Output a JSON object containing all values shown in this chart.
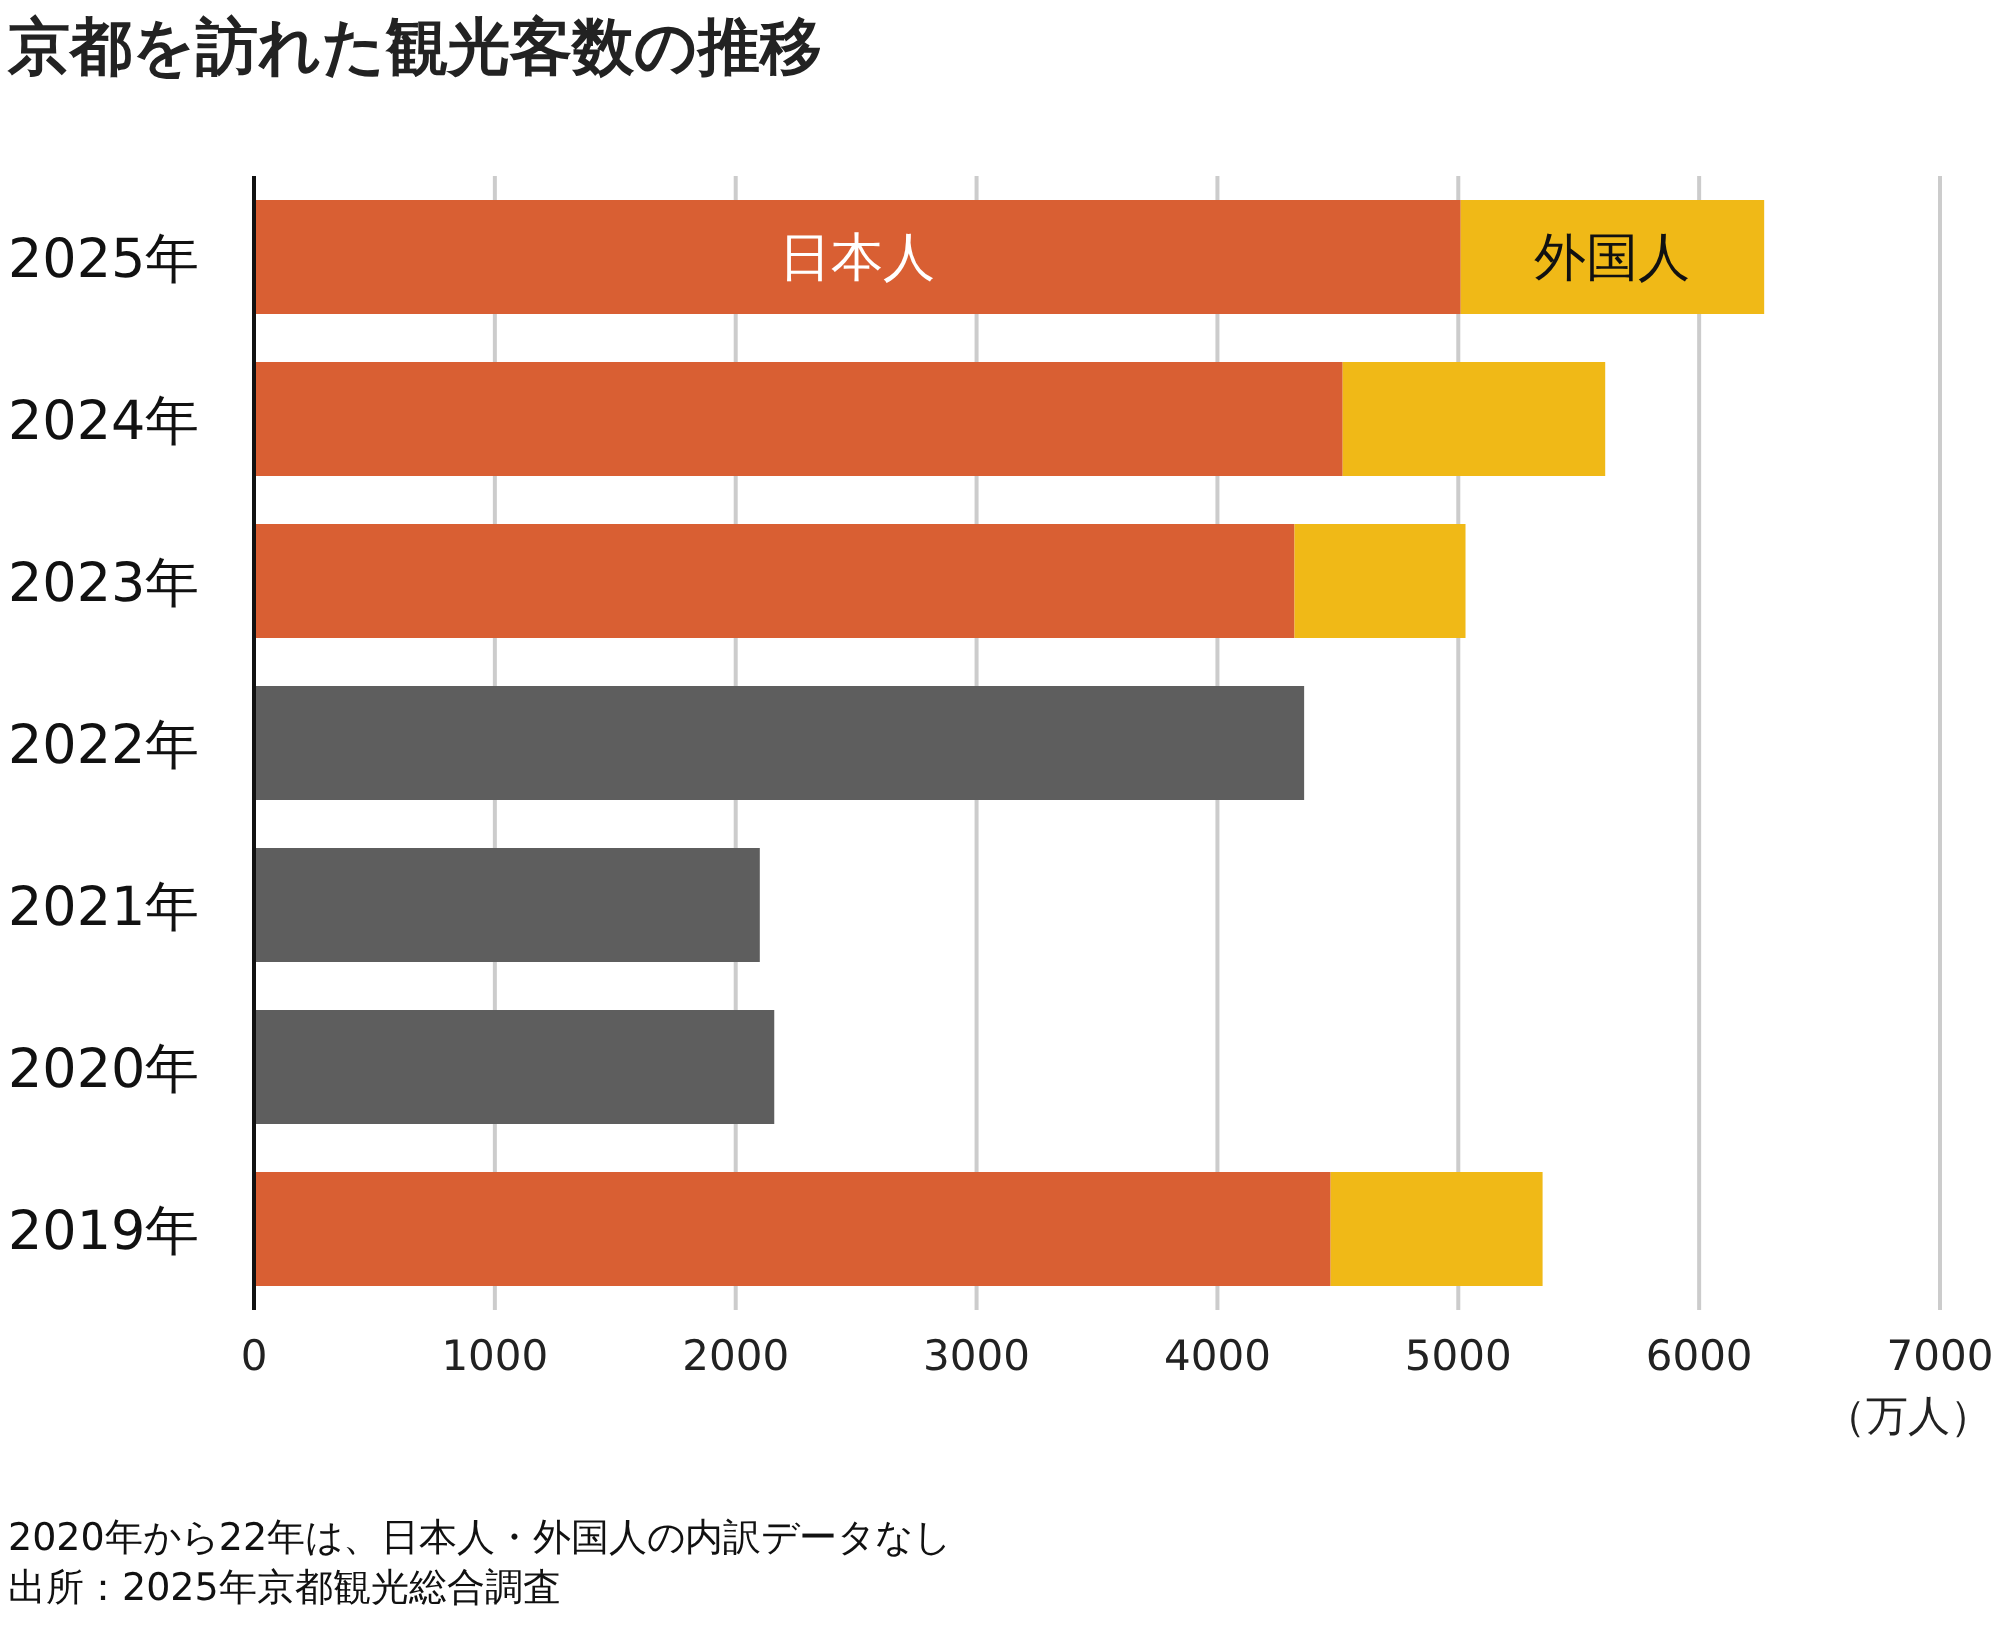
{
  "chart_data": {
    "type": "bar",
    "orientation": "horizontal",
    "stacked": true,
    "title": "京都を訪れた観光客数の推移",
    "xlabel": "（万人）",
    "categories": [
      "2025年",
      "2024年",
      "2023年",
      "2022年",
      "2021年",
      "2020年",
      "2019年"
    ],
    "series": [
      {
        "name": "日本人",
        "color": "#d95f33",
        "colors": [
          "#d95f33",
          "#d95f33",
          "#d95f33",
          "#5e5e5e",
          "#5e5e5e",
          "#5e5e5e",
          "#d95f33"
        ],
        "values": [
          5010,
          4520,
          4320,
          4360,
          2100,
          2160,
          4470
        ]
      },
      {
        "name": "外国人",
        "color": "#f0b917",
        "values": [
          1260,
          1090,
          710,
          null,
          null,
          null,
          880
        ]
      }
    ],
    "xlim": [
      0,
      7000
    ],
    "xticks": [
      0,
      1000,
      2000,
      3000,
      4000,
      5000,
      6000,
      7000
    ],
    "grid": "x",
    "legend": false,
    "annotations": [
      "2020年から22年は、日本人・外国人の内訳データなし",
      "出所：2025年京都観光総合調査"
    ]
  }
}
